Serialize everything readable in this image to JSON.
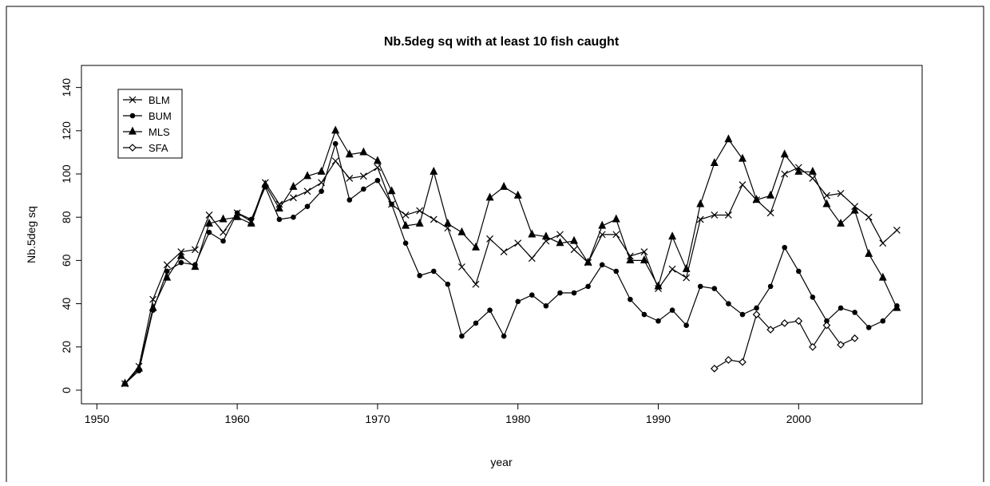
{
  "chart_data": {
    "type": "line",
    "title": "Nb.5deg sq with at least 10 fish caught",
    "xlabel": "year",
    "ylabel": "Nb.5deg sq",
    "x": [
      1952,
      1953,
      1954,
      1955,
      1956,
      1957,
      1958,
      1959,
      1960,
      1961,
      1962,
      1963,
      1964,
      1965,
      1966,
      1967,
      1968,
      1969,
      1970,
      1971,
      1972,
      1973,
      1974,
      1975,
      1976,
      1977,
      1978,
      1979,
      1980,
      1981,
      1982,
      1983,
      1984,
      1985,
      1986,
      1987,
      1988,
      1989,
      1990,
      1991,
      1992,
      1993,
      1994,
      1995,
      1996,
      1997,
      1998,
      1999,
      2000,
      2001,
      2002,
      2003,
      2004,
      2005,
      2006,
      2007
    ],
    "series": [
      {
        "name": "BLM",
        "color": "#000000",
        "marker": "x",
        "values": [
          3,
          11,
          42,
          58,
          64,
          65,
          81,
          73,
          82,
          78,
          96,
          86,
          89,
          92,
          96,
          106,
          98,
          99,
          103,
          86,
          81,
          83,
          79,
          75,
          57,
          49,
          70,
          64,
          68,
          61,
          69,
          72,
          65,
          59,
          72,
          72,
          62,
          64,
          47,
          56,
          52,
          79,
          81,
          81,
          95,
          88,
          82,
          100,
          103,
          98,
          90,
          91,
          85,
          80,
          68,
          74
        ]
      },
      {
        "name": "BUM",
        "color": "#000000",
        "marker": "circle",
        "values": [
          3,
          9,
          37,
          55,
          59,
          58,
          73,
          69,
          82,
          79,
          94,
          79,
          80,
          85,
          92,
          114,
          88,
          93,
          97,
          86,
          68,
          53,
          55,
          49,
          25,
          31,
          37,
          25,
          41,
          44,
          39,
          45,
          45,
          48,
          58,
          55,
          42,
          35,
          32,
          37,
          30,
          48,
          47,
          40,
          35,
          38,
          48,
          66,
          55,
          43,
          32,
          38,
          36,
          29,
          32,
          39
        ]
      },
      {
        "name": "MLS",
        "color": "#000000",
        "marker": "triangle",
        "values": [
          3,
          10,
          38,
          52,
          62,
          57,
          77,
          79,
          80,
          77,
          95,
          84,
          94,
          99,
          101,
          120,
          109,
          110,
          106,
          92,
          76,
          77,
          101,
          77,
          73,
          66,
          89,
          94,
          90,
          72,
          71,
          68,
          69,
          59,
          76,
          79,
          60,
          60,
          48,
          71,
          56,
          86,
          105,
          116,
          107,
          88,
          90,
          109,
          101,
          101,
          86,
          77,
          83,
          63,
          52,
          38
        ]
      },
      {
        "name": "SFA",
        "color": "#000000",
        "marker": "diamond",
        "values": [
          null,
          null,
          null,
          null,
          null,
          null,
          null,
          null,
          null,
          null,
          null,
          null,
          null,
          null,
          null,
          null,
          null,
          null,
          null,
          null,
          null,
          null,
          null,
          null,
          null,
          null,
          null,
          null,
          null,
          null,
          null,
          null,
          null,
          null,
          null,
          null,
          null,
          null,
          null,
          null,
          null,
          null,
          10,
          14,
          13,
          35,
          28,
          31,
          32,
          20,
          30,
          21,
          24,
          null,
          null,
          null
        ]
      }
    ],
    "xlim": [
      1948.9,
      2008.8
    ],
    "xticks": [
      1950,
      1960,
      1970,
      1980,
      1990,
      2000
    ],
    "ylim": [
      -6.3,
      150.2
    ],
    "yticks": [
      0,
      20,
      40,
      60,
      80,
      100,
      120,
      140
    ],
    "legend": "top-left"
  }
}
